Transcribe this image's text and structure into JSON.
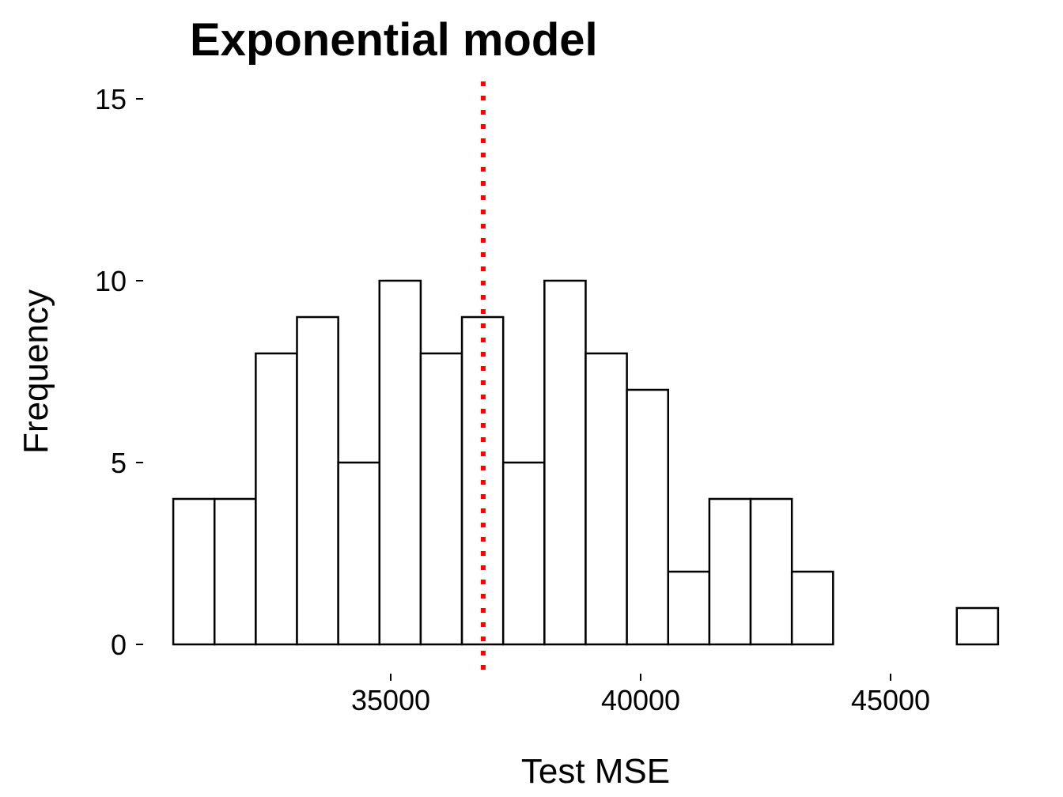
{
  "chart_data": {
    "type": "bar",
    "title": "Exponential model",
    "xlabel": "Test MSE",
    "ylabel": "Frequency",
    "bin_width": 825,
    "bins": [
      {
        "x0": 30650,
        "x1": 31475,
        "count": 4
      },
      {
        "x0": 31475,
        "x1": 32300,
        "count": 4
      },
      {
        "x0": 32300,
        "x1": 33125,
        "count": 8
      },
      {
        "x0": 33125,
        "x1": 33950,
        "count": 9
      },
      {
        "x0": 33950,
        "x1": 34775,
        "count": 5
      },
      {
        "x0": 34775,
        "x1": 35600,
        "count": 10
      },
      {
        "x0": 35600,
        "x1": 36425,
        "count": 8
      },
      {
        "x0": 36425,
        "x1": 37250,
        "count": 9
      },
      {
        "x0": 37250,
        "x1": 38075,
        "count": 5
      },
      {
        "x0": 38075,
        "x1": 38900,
        "count": 10
      },
      {
        "x0": 38900,
        "x1": 39725,
        "count": 8
      },
      {
        "x0": 39725,
        "x1": 40550,
        "count": 7
      },
      {
        "x0": 40550,
        "x1": 41375,
        "count": 2
      },
      {
        "x0": 41375,
        "x1": 42200,
        "count": 4
      },
      {
        "x0": 42200,
        "x1": 43025,
        "count": 4
      },
      {
        "x0": 43025,
        "x1": 43850,
        "count": 2
      },
      {
        "x0": 43850,
        "x1": 44675,
        "count": 0
      },
      {
        "x0": 44675,
        "x1": 45500,
        "count": 0
      },
      {
        "x0": 45500,
        "x1": 46325,
        "count": 0
      },
      {
        "x0": 46325,
        "x1": 47150,
        "count": 1
      }
    ],
    "xlim": [
      30300,
      47500
    ],
    "ylim": [
      0,
      16
    ],
    "x_ticks": [
      35000,
      40000,
      45000
    ],
    "x_tick_labels": [
      "35000",
      "40000",
      "45000"
    ],
    "y_ticks": [
      0,
      5,
      10,
      15
    ],
    "y_tick_labels": [
      "0",
      "5",
      "10",
      "15"
    ],
    "reference_line": {
      "x": 36850,
      "color": "#ff0000",
      "style": "dotted"
    },
    "grid": false,
    "legend": "none",
    "colors": {
      "bar_fill": "#ffffff",
      "bar_stroke": "#000000"
    }
  }
}
